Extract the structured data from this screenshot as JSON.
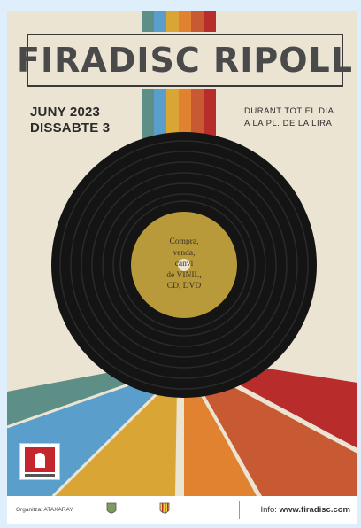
{
  "poster": {
    "title": "FIRADISC RIPOLL",
    "month_year": "JUNY 2023",
    "day": "DISSABTE 3",
    "schedule": "DURANT TOT EL DIA",
    "location": "A LA PL. DE LA LIRA",
    "record_label_lines": [
      "Compra,",
      "venda,",
      "canvi",
      "de VINIL,",
      "CD, DVD"
    ],
    "footer_organizer": "Organitza: ATAXARAY",
    "footer_info_prefix": "Info:",
    "footer_info_url": "www.firadisc.com",
    "colors": {
      "background": "#ece4d3",
      "record": "#141414",
      "label": "#b89a3a",
      "stripes": [
        "#5e8f86",
        "#5a9ecb",
        "#d9a534",
        "#e0822f",
        "#c85a33",
        "#b82c2c"
      ]
    },
    "icons": [
      "town-logo-icon",
      "coat-of-arms-icon",
      "flag-shield-icon"
    ]
  }
}
